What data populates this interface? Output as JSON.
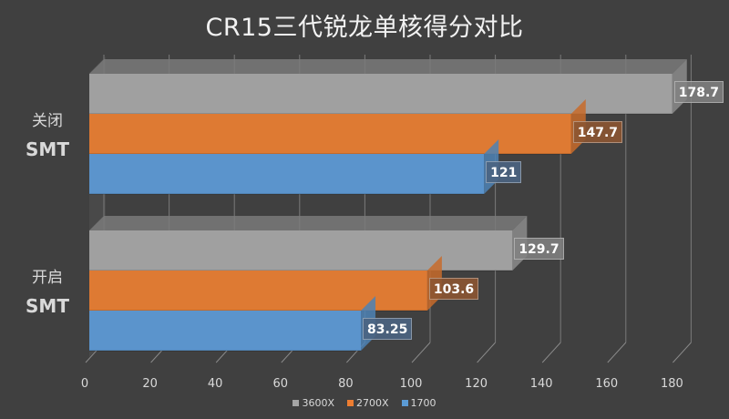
{
  "title": "CR15三代锐龙单核得分对比",
  "categories": [
    {
      "line1": "关闭",
      "line2": "SMT"
    },
    {
      "line1": "开启",
      "line2": "SMT"
    }
  ],
  "ticks": [
    "0",
    "20",
    "40",
    "60",
    "80",
    "100",
    "120",
    "140",
    "160",
    "180"
  ],
  "legend": [
    {
      "label": "3600X",
      "color": "#a5a5a5"
    },
    {
      "label": "2700X",
      "color": "#ed7d31"
    },
    {
      "label": "1700",
      "color": "#5b9bd5"
    }
  ],
  "labels": {
    "g0s0": "178.7",
    "g0s1": "147.7",
    "g0s2": "121",
    "g1s0": "129.7",
    "g1s1": "103.6",
    "g1s2": "83.25"
  },
  "chart_data": {
    "type": "bar",
    "orientation": "horizontal",
    "style": "3d-clustered",
    "title": "CR15三代锐龙单核得分对比",
    "categories": [
      "关闭 SMT",
      "开启 SMT"
    ],
    "series": [
      {
        "name": "3600X",
        "color": "#a5a5a5",
        "values": [
          178.7,
          129.7
        ]
      },
      {
        "name": "2700X",
        "color": "#ed7d31",
        "values": [
          147.7,
          103.6
        ]
      },
      {
        "name": "1700",
        "color": "#5b9bd5",
        "values": [
          121,
          83.25
        ]
      }
    ],
    "xlabel": "",
    "ylabel": "",
    "xlim": [
      0,
      180
    ],
    "xticks": [
      0,
      20,
      40,
      60,
      80,
      100,
      120,
      140,
      160,
      180
    ],
    "grid": true,
    "legend_position": "bottom",
    "data_labels": true
  }
}
